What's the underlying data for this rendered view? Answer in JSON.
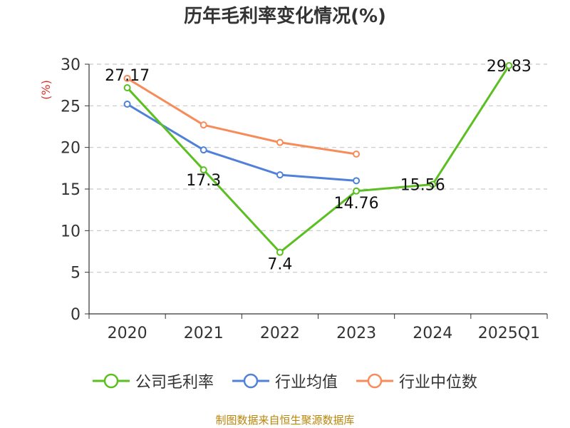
{
  "chart_data": {
    "type": "line",
    "title": "历年毛利率变化情况(%)",
    "ylabel": "(%)",
    "xlabel": "",
    "categories": [
      "2020",
      "2021",
      "2022",
      "2023",
      "2024",
      "2025Q1"
    ],
    "ylim": [
      0,
      30
    ],
    "yticks": [
      0,
      5,
      10,
      15,
      20,
      25,
      30
    ],
    "grid": true,
    "legend_position": "bottom",
    "series": [
      {
        "name": "公司毛利率",
        "color": "#5bbf21",
        "values": [
          27.17,
          17.3,
          7.4,
          14.76,
          15.56,
          29.83
        ],
        "labels": [
          "27.17",
          "17.3",
          "7.4",
          "14.76",
          "15.56",
          "29.83"
        ]
      },
      {
        "name": "行业均值",
        "color": "#4f81d8",
        "values": [
          25.2,
          19.7,
          16.7,
          16.0,
          null,
          null
        ]
      },
      {
        "name": "行业中位数",
        "color": "#f78c5a",
        "values": [
          28.3,
          22.7,
          20.6,
          19.2,
          null,
          null
        ]
      }
    ]
  },
  "footer": {
    "source": "制图数据来自恒生聚源数据库"
  }
}
